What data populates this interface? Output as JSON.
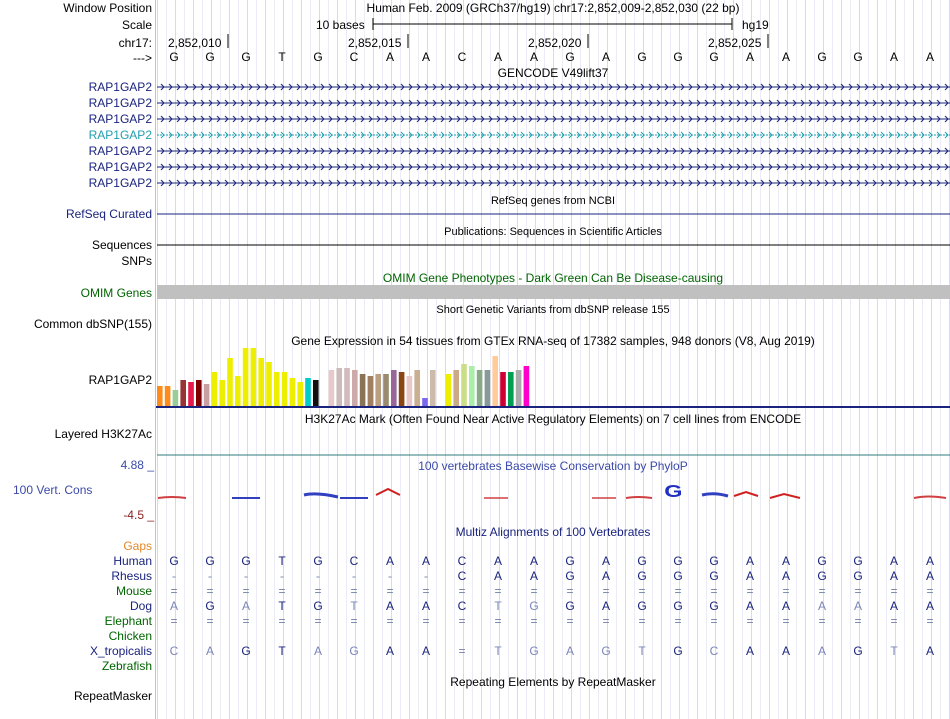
{
  "header": {
    "window_position_label": "Window Position",
    "scale_label": "Scale",
    "chrom_label": "chr17:",
    "strand_label": "--->",
    "assembly_text": "Human Feb. 2009 (GRCh37/hg19)   chr17:2,852,009-2,852,030 (22 bp)",
    "scale_text": "10 bases",
    "db_text": "hg19",
    "ticks": [
      "2,852,010",
      "2,852,015",
      "2,852,020",
      "2,852,025"
    ]
  },
  "dna_sequence": [
    "G",
    "G",
    "G",
    "T",
    "G",
    "C",
    "A",
    "A",
    "C",
    "A",
    "A",
    "G",
    "A",
    "G",
    "G",
    "G",
    "A",
    "A",
    "G",
    "G",
    "A",
    "A"
  ],
  "gencode": {
    "title": "GENCODE V49lift37",
    "genes": [
      "RAP1GAP2",
      "RAP1GAP2",
      "RAP1GAP2",
      "RAP1GAP2",
      "RAP1GAP2",
      "RAP1GAP2",
      "RAP1GAP2"
    ]
  },
  "refseq": {
    "title": "RefSeq genes from NCBI",
    "label": "RefSeq Curated"
  },
  "publications": {
    "title": "Publications: Sequences in Scientific Articles",
    "label_1": "Sequences",
    "label_2": "SNPs"
  },
  "omim": {
    "title": "OMIM Gene Phenotypes - Dark Green Can Be Disease-causing",
    "label": "OMIM Genes"
  },
  "dbsnp": {
    "title": "Short Genetic Variants from dbSNP release 155",
    "label": "Common dbSNP(155)"
  },
  "gtex": {
    "title": "Gene Expression in 54 tissues from GTEx RNA-seq of 17382 samples, 948 donors (V8, Aug 2019)",
    "label": "RAP1GAP2",
    "bars": [
      {
        "v": 20,
        "c": "#ff8c1a"
      },
      {
        "v": 20,
        "c": "#ff8c1a"
      },
      {
        "v": 16,
        "c": "#99cc99"
      },
      {
        "v": 26,
        "c": "#993333"
      },
      {
        "v": 24,
        "c": "#e6194b"
      },
      {
        "v": 26,
        "c": "#800000"
      },
      {
        "v": 22,
        "c": "#c8a0a0"
      },
      {
        "v": 34,
        "c": "#eeee00"
      },
      {
        "v": 26,
        "c": "#eeee00"
      },
      {
        "v": 48,
        "c": "#eeee00"
      },
      {
        "v": 30,
        "c": "#eeee00"
      },
      {
        "v": 58,
        "c": "#eeee00"
      },
      {
        "v": 58,
        "c": "#eeee00"
      },
      {
        "v": 48,
        "c": "#eeee00"
      },
      {
        "v": 44,
        "c": "#eeee00"
      },
      {
        "v": 34,
        "c": "#eeee00"
      },
      {
        "v": 34,
        "c": "#eeee00"
      },
      {
        "v": 28,
        "c": "#eeee00"
      },
      {
        "v": 24,
        "c": "#eeee00"
      },
      {
        "v": 28,
        "c": "#00cccc"
      },
      {
        "v": 26,
        "c": "#111111"
      },
      {
        "v": 14,
        "c": "#ffffff"
      },
      {
        "v": 36,
        "c": "#e8c8c8"
      },
      {
        "v": 38,
        "c": "#ccbbbb"
      },
      {
        "v": 38,
        "c": "#d4bbbb"
      },
      {
        "v": 36,
        "c": "#ccaaaa"
      },
      {
        "v": 32,
        "c": "#8b7355"
      },
      {
        "v": 30,
        "c": "#a08060"
      },
      {
        "v": 32,
        "c": "#bba080"
      },
      {
        "v": 32,
        "c": "#9a8a70"
      },
      {
        "v": 36,
        "c": "#996699"
      },
      {
        "v": 34,
        "c": "#8b4513"
      },
      {
        "v": 30,
        "c": "#e8c8c8"
      },
      {
        "v": 36,
        "c": "#c8b090"
      },
      {
        "v": 8,
        "c": "#7b68ee"
      },
      {
        "v": 36,
        "c": "#ccbbaa"
      },
      {
        "v": 14,
        "c": "#ffffff"
      },
      {
        "v": 32,
        "c": "#eeee00"
      },
      {
        "v": 36,
        "c": "#ccaa88"
      },
      {
        "v": 42,
        "c": "#ccdd88"
      },
      {
        "v": 40,
        "c": "#aaeeaa"
      },
      {
        "v": 36,
        "c": "#88aa88"
      },
      {
        "v": 36,
        "c": "#889999"
      },
      {
        "v": 50,
        "c": "#ffcc99"
      },
      {
        "v": 34,
        "c": "#cc0033"
      },
      {
        "v": 34,
        "c": "#00a050"
      },
      {
        "v": 36,
        "c": "#aaaaaa"
      },
      {
        "v": 40,
        "c": "#ff00cc"
      }
    ]
  },
  "h3k27ac": {
    "title": "H3K27Ac Mark (Often Found Near Active Regulatory Elements) on 7 cell lines from ENCODE",
    "label": "Layered H3K27Ac"
  },
  "phylop": {
    "title": "100 vertebrates Basewise Conservation by PhyloP",
    "label": "100 Vert. Cons",
    "max_label": "4.88 _",
    "min_label": "-4.5 _"
  },
  "multiz": {
    "title": "Multiz Alignments of 100 Vertebrates",
    "species": [
      {
        "name": "Gaps",
        "color": "#e0892a",
        "bases": []
      },
      {
        "name": "Human",
        "color": "#1a237e",
        "bases": [
          "G",
          "G",
          "G",
          "T",
          "G",
          "C",
          "A",
          "A",
          "C",
          "A",
          "A",
          "G",
          "A",
          "G",
          "G",
          "G",
          "A",
          "A",
          "G",
          "G",
          "A",
          "A"
        ]
      },
      {
        "name": "Rhesus",
        "color": "#1a237e",
        "bases": [
          "-",
          "-",
          "-",
          "-",
          "-",
          "-",
          "-",
          "-",
          "C",
          "A",
          "A",
          "G",
          "A",
          "G",
          "G",
          "G",
          "A",
          "A",
          "G",
          "G",
          "A",
          "A"
        ]
      },
      {
        "name": "Mouse",
        "color": "#006400",
        "bases": [
          "=",
          "=",
          "=",
          "=",
          "=",
          "=",
          "=",
          "=",
          "=",
          "=",
          "=",
          "=",
          "=",
          "=",
          "=",
          "=",
          "=",
          "=",
          "=",
          "=",
          "=",
          "="
        ]
      },
      {
        "name": "Dog",
        "color": "#1a237e",
        "bases": [
          "A",
          "G",
          "A",
          "T",
          "G",
          "T",
          "A",
          "A",
          "C",
          "T",
          "G",
          "G",
          "A",
          "G",
          "G",
          "G",
          "A",
          "A",
          "A",
          "A",
          "A",
          "A"
        ]
      },
      {
        "name": "Elephant",
        "color": "#006400",
        "bases": [
          "=",
          "=",
          "=",
          "=",
          "=",
          "=",
          "=",
          "=",
          "=",
          "=",
          "=",
          "=",
          "=",
          "=",
          "=",
          "=",
          "=",
          "=",
          "=",
          "=",
          "=",
          "="
        ]
      },
      {
        "name": "Chicken",
        "color": "#006400",
        "bases": []
      },
      {
        "name": "X_tropicalis",
        "color": "#1a237e",
        "bases": [
          "C",
          "A",
          "G",
          "T",
          "A",
          "G",
          "A",
          "A",
          "=",
          "T",
          "G",
          "A",
          "G",
          "T",
          "G",
          "C",
          "A",
          "A",
          "A",
          "G",
          "T",
          "A"
        ]
      },
      {
        "name": "Zebrafish",
        "color": "#006400",
        "bases": []
      }
    ]
  },
  "repeatmasker": {
    "title": "Repeating Elements by RepeatMasker",
    "label": "RepeatMasker"
  }
}
